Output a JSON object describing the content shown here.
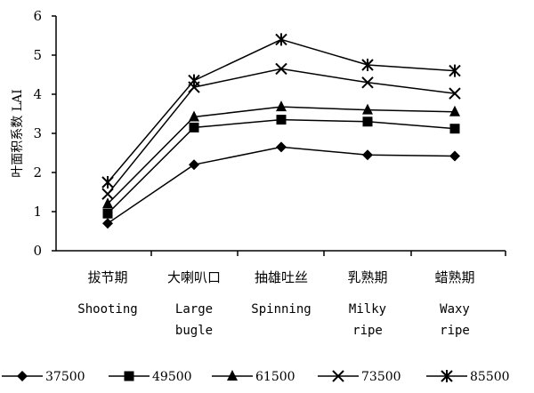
{
  "chart_data": {
    "type": "line",
    "ylabel": "叶面积系数 LAI",
    "ylim": [
      0,
      6
    ],
    "yticks": [
      0,
      1,
      2,
      3,
      4,
      5,
      6
    ],
    "grid": false,
    "legend_position": "bottom",
    "categories": [
      {
        "cn": "拔节期",
        "en": [
          "Shooting"
        ]
      },
      {
        "cn": "大喇叭口",
        "en": [
          "Large",
          "bugle"
        ]
      },
      {
        "cn": "抽雄吐丝",
        "en": [
          "Spinning"
        ]
      },
      {
        "cn": "乳熟期",
        "en": [
          "Milky",
          "ripe"
        ]
      },
      {
        "cn": "蜡熟期",
        "en": [
          "Waxy",
          "ripe"
        ]
      }
    ],
    "series": [
      {
        "name": "37500",
        "marker": "diamond",
        "values": [
          0.7,
          2.2,
          2.65,
          2.45,
          2.42
        ]
      },
      {
        "name": "49500",
        "marker": "square",
        "values": [
          0.95,
          3.15,
          3.35,
          3.3,
          3.12
        ]
      },
      {
        "name": "61500",
        "marker": "triangle",
        "values": [
          1.2,
          3.42,
          3.68,
          3.6,
          3.55
        ]
      },
      {
        "name": "73500",
        "marker": "x",
        "values": [
          1.45,
          4.18,
          4.65,
          4.3,
          4.02
        ]
      },
      {
        "name": "85500",
        "marker": "asterisk",
        "values": [
          1.75,
          4.35,
          5.4,
          4.75,
          4.6
        ]
      }
    ]
  }
}
